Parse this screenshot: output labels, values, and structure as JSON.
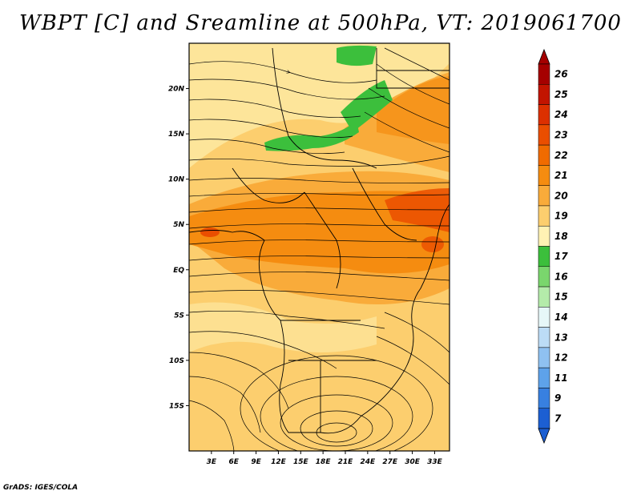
{
  "title": "WBPT [C] and Sreamline at 500hPa, VT: 2019061700",
  "footer": "GrADS: IGES/COLA",
  "map": {
    "lat_labels": [
      "20N",
      "15N",
      "10N",
      "5N",
      "EQ",
      "5S",
      "10S",
      "15S"
    ],
    "lat_values": [
      20,
      15,
      10,
      5,
      0,
      -5,
      -10,
      -15
    ],
    "lon_labels": [
      "3E",
      "6E",
      "9E",
      "12E",
      "15E",
      "18E",
      "21E",
      "24E",
      "27E",
      "30E",
      "33E"
    ],
    "lon_values": [
      3,
      6,
      9,
      12,
      15,
      18,
      21,
      24,
      27,
      30,
      33
    ],
    "lon_range": [
      0,
      35
    ],
    "lat_range": [
      -20,
      25
    ]
  },
  "colorbar": {
    "labels": [
      "26",
      "25",
      "24",
      "23",
      "22",
      "21",
      "20",
      "19",
      "18",
      "17",
      "16",
      "15",
      "14",
      "13",
      "12",
      "11",
      "9",
      "7"
    ],
    "colors": [
      "#a50000",
      "#c21400",
      "#dc3000",
      "#ea4e00",
      "#f06b00",
      "#f58c10",
      "#f9ab3a",
      "#fcce6e",
      "#fff2b4",
      "#3cbf3c",
      "#7ad66d",
      "#b4ebaa",
      "#e6f7f8",
      "#bcdcf6",
      "#8fc1f1",
      "#5ea2ea",
      "#3880e0",
      "#1c5fd2"
    ]
  }
}
